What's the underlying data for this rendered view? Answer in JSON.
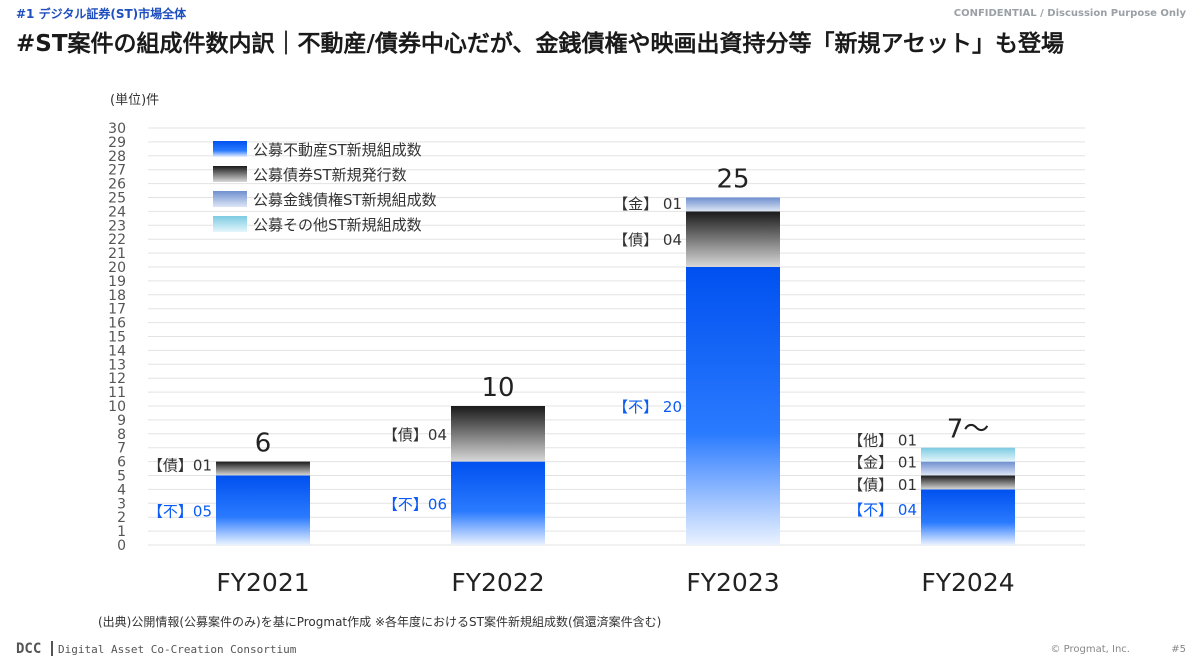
{
  "header": {
    "section_tag": "#1 デジタル証券(ST)市場全体",
    "confidential": "CONFIDENTIAL / Discussion Purpose Only",
    "title": "#ST案件の組成件数内訳｜不動産/債券中心だが、金銭債権や映画出資持分等「新規アセット」も登場"
  },
  "chart_data": {
    "type": "bar",
    "stacked": true,
    "unit_label": "(単位)件",
    "ylim": [
      0,
      30
    ],
    "grid": true,
    "legend_position": "top-left",
    "categories": [
      "FY2021",
      "FY2022",
      "FY2023",
      "FY2024"
    ],
    "series": [
      {
        "name": "公募不動産ST新規組成数",
        "key": "re",
        "values": [
          5,
          6,
          20,
          4
        ],
        "color": "#0a5cf5",
        "prefix": "【不】"
      },
      {
        "name": "公募債券ST新規発行数",
        "key": "bond",
        "values": [
          1,
          4,
          4,
          1
        ],
        "color": "#2a2a2a",
        "prefix": "【債】"
      },
      {
        "name": "公募金銭債権ST新規組成数",
        "key": "mon",
        "values": [
          0,
          0,
          1,
          1
        ],
        "color": "#7f9fd6",
        "prefix": "【金】"
      },
      {
        "name": "公募その他ST新規組成数",
        "key": "oth",
        "values": [
          0,
          0,
          0,
          1
        ],
        "color": "#8fd3e6",
        "prefix": "【他】"
      }
    ],
    "totals": [
      "6",
      "10",
      "25",
      "7〜"
    ],
    "segment_labels": [
      [
        "【不】05",
        "【債】01"
      ],
      [
        "【不】06",
        "【債】04"
      ],
      [
        "【不】 20",
        "【債】 04",
        "【金】 01"
      ],
      [
        "【不】 04",
        "【債】 01",
        "【金】 01",
        "【他】 01"
      ]
    ]
  },
  "footnote": "(出典)公開情報(公募案件のみ)を基にProgmat作成 ※各年度におけるST案件新規組成数(償還済案件含む)",
  "footer": {
    "logo": "DCC",
    "org": "Digital Asset Co-Creation Consortium",
    "copyright": "© Progmat, Inc.",
    "page": "#5"
  }
}
